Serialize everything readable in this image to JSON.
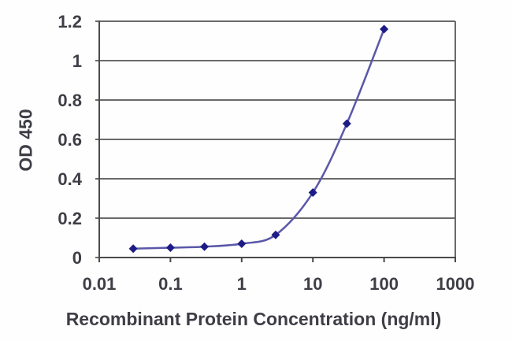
{
  "chart_data": {
    "type": "line",
    "title": "",
    "xlabel": "Recombinant Protein Concentration (ng/ml)",
    "ylabel": "OD 450",
    "x_scale": "log",
    "xlim": [
      0.01,
      1000
    ],
    "ylim": [
      0,
      1.2
    ],
    "x_ticks": [
      0.01,
      0.1,
      1,
      10,
      100,
      1000
    ],
    "x_tick_labels": [
      "0.01",
      "0.1",
      "1",
      "10",
      "100",
      "1000"
    ],
    "y_ticks": [
      0,
      0.2,
      0.4,
      0.6,
      0.8,
      1,
      1.2
    ],
    "y_tick_labels": [
      "0",
      "0.2",
      "0.4",
      "0.6",
      "0.8",
      "1",
      "1.2"
    ],
    "grid": "horizontal",
    "legend_position": "none",
    "marker": "diamond",
    "smooth_line": true,
    "x": [
      0.03,
      0.1,
      0.3,
      1,
      3,
      10,
      30,
      100
    ],
    "series": [
      {
        "name": "OD 450",
        "values": [
          0.045,
          0.05,
          0.055,
          0.07,
          0.115,
          0.33,
          0.68,
          1.16
        ]
      }
    ],
    "colors": {
      "line": "#5a58a8",
      "marker": "#1d1b84",
      "grid": "#6a6a6a",
      "axis": "#4a4a4a",
      "text": "#3e3e46",
      "background": "#fefefe"
    }
  }
}
